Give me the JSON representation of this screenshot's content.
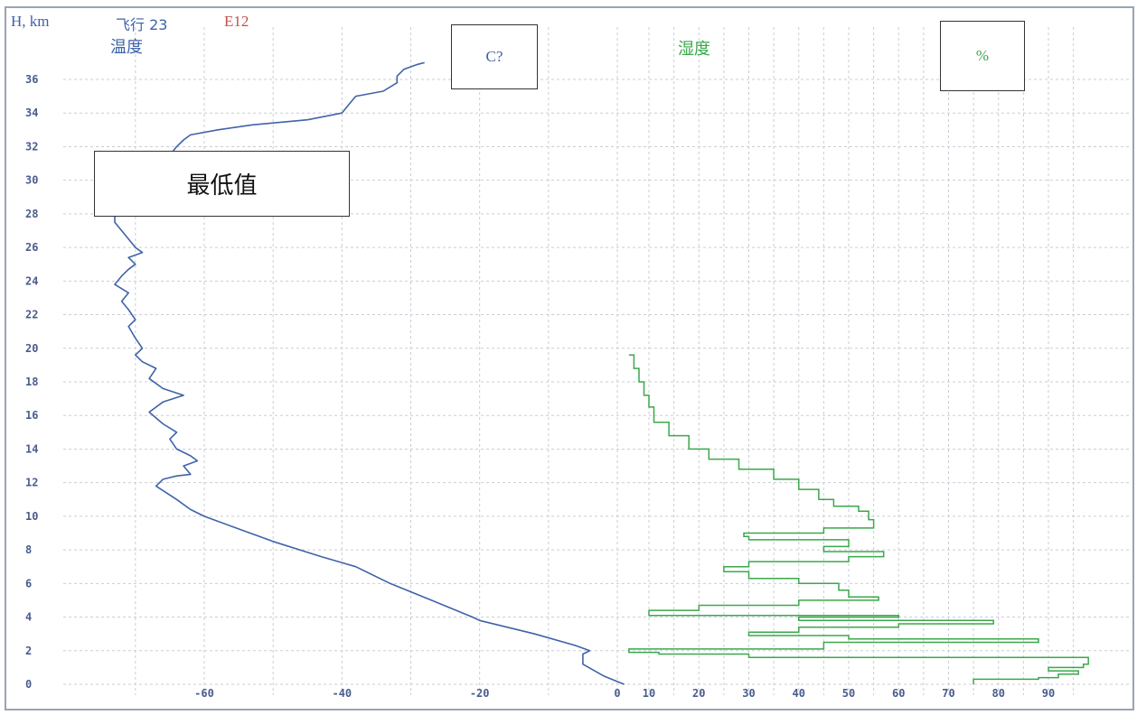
{
  "header": {
    "axis_label": "H, km",
    "flight": "飞行 23",
    "code": "E12",
    "temp_label": "温度",
    "temp_unit": "C?",
    "humidity_label": "湿度",
    "humidity_unit": "%",
    "annotation": "最低值"
  },
  "colors": {
    "temperature": "#3f63a8",
    "humidity": "#3aa84a",
    "code": "#c0504d",
    "tick": "#4a5c8e",
    "grid": "#c9cdd6"
  },
  "chart_data": [
    {
      "type": "line",
      "title": "",
      "xlabel": "温度",
      "ylabel": "H, km",
      "x_unit": "C?",
      "xlim": [
        -75,
        3
      ],
      "ylim": [
        -0.5,
        38
      ],
      "grid": true,
      "x_ticks": [
        -60,
        -40,
        -20,
        0
      ],
      "x_tick_labels": [
        "-60",
        "-40",
        "-20",
        "0"
      ],
      "y_ticks": [
        0,
        2,
        4,
        6,
        8,
        10,
        12,
        14,
        16,
        18,
        20,
        22,
        24,
        26,
        28,
        30,
        32,
        34,
        36
      ],
      "y_tick_labels": [
        "0",
        "2",
        "4",
        "6",
        "8",
        "10",
        "12",
        "14",
        "16",
        "18",
        "20",
        "22",
        "24",
        "26",
        "28",
        "30",
        "32",
        "34",
        "36"
      ],
      "series": [
        {
          "name": "温度",
          "points": [
            [
              1,
              0
            ],
            [
              -2,
              0.5
            ],
            [
              -5,
              1.2
            ],
            [
              -5,
              1.8
            ],
            [
              -4,
              2
            ],
            [
              -6,
              2.3
            ],
            [
              -12,
              3
            ],
            [
              -20,
              3.8
            ],
            [
              -21,
              4
            ],
            [
              -27,
              5
            ],
            [
              -33,
              6
            ],
            [
              -38,
              7
            ],
            [
              -43,
              7.6
            ],
            [
              -50,
              8.5
            ],
            [
              -56,
              9.4
            ],
            [
              -60,
              10
            ],
            [
              -62,
              10.4
            ],
            [
              -64,
              11
            ],
            [
              -67,
              11.8
            ],
            [
              -66,
              12.2
            ],
            [
              -64,
              12.4
            ],
            [
              -62,
              12.5
            ],
            [
              -63,
              13
            ],
            [
              -61,
              13.3
            ],
            [
              -62,
              13.6
            ],
            [
              -64,
              14
            ],
            [
              -65,
              14.6
            ],
            [
              -64,
              15
            ],
            [
              -66,
              15.5
            ],
            [
              -68,
              16.2
            ],
            [
              -66,
              16.8
            ],
            [
              -63,
              17.2
            ],
            [
              -66,
              17.6
            ],
            [
              -68,
              18.2
            ],
            [
              -67,
              18.8
            ],
            [
              -69,
              19.2
            ],
            [
              -70,
              19.6
            ],
            [
              -69,
              20
            ],
            [
              -70,
              20.6
            ],
            [
              -71,
              21.3
            ],
            [
              -70,
              21.7
            ],
            [
              -71,
              22.3
            ],
            [
              -72,
              22.8
            ],
            [
              -71,
              23.3
            ],
            [
              -73,
              23.8
            ],
            [
              -72,
              24.3
            ],
            [
              -71,
              24.7
            ],
            [
              -70,
              25
            ],
            [
              -71,
              25.4
            ],
            [
              -69,
              25.7
            ],
            [
              -70,
              26
            ],
            [
              -71,
              26.5
            ],
            [
              -72,
              27
            ],
            [
              -73,
              27.5
            ],
            [
              -73,
              28
            ],
            [
              -74,
              28.5
            ],
            [
              -75,
              29
            ],
            [
              -74,
              29.3
            ],
            [
              -70,
              29.6
            ],
            [
              -68,
              30
            ],
            [
              -67,
              30.5
            ],
            [
              -66,
              31
            ],
            [
              -65,
              31.5
            ],
            [
              -64,
              32
            ],
            [
              -63,
              32.4
            ],
            [
              -62,
              32.7
            ],
            [
              -58,
              33
            ],
            [
              -53,
              33.3
            ],
            [
              -45,
              33.6
            ],
            [
              -40,
              34
            ],
            [
              -39,
              34.5
            ],
            [
              -38,
              35
            ],
            [
              -34,
              35.3
            ],
            [
              -32,
              35.8
            ],
            [
              -32,
              36.2
            ],
            [
              -31,
              36.6
            ],
            [
              -29,
              36.9
            ],
            [
              -28,
              37
            ]
          ]
        }
      ]
    },
    {
      "type": "line",
      "title": "",
      "xlabel": "湿度",
      "ylabel": "H, km",
      "x_unit": "%",
      "xlim": [
        3,
        100
      ],
      "ylim": [
        -0.5,
        38
      ],
      "grid": true,
      "x_ticks": [
        10,
        20,
        30,
        40,
        50,
        60,
        70,
        80,
        90
      ],
      "x_tick_labels": [
        "10",
        "20",
        "30",
        "40",
        "50",
        "60",
        "70",
        "80",
        "90"
      ],
      "series": [
        {
          "name": "湿度",
          "points": [
            [
              75,
              0
            ],
            [
              88,
              0.3
            ],
            [
              92,
              0.4
            ],
            [
              96,
              0.6
            ],
            [
              90,
              0.8
            ],
            [
              97,
              1
            ],
            [
              98,
              1.2
            ],
            [
              30,
              1.6
            ],
            [
              12,
              1.8
            ],
            [
              6,
              1.9
            ],
            [
              45,
              2.1
            ],
            [
              88,
              2.5
            ],
            [
              50,
              2.7
            ],
            [
              30,
              2.9
            ],
            [
              40,
              3.1
            ],
            [
              60,
              3.4
            ],
            [
              79,
              3.6
            ],
            [
              40,
              3.8
            ],
            [
              60,
              4
            ],
            [
              10,
              4.1
            ],
            [
              20,
              4.4
            ],
            [
              40,
              4.7
            ],
            [
              56,
              5
            ],
            [
              50,
              5.2
            ],
            [
              48,
              5.6
            ],
            [
              40,
              6
            ],
            [
              30,
              6.3
            ],
            [
              25,
              6.7
            ],
            [
              30,
              7
            ],
            [
              50,
              7.3
            ],
            [
              57,
              7.6
            ],
            [
              45,
              7.9
            ],
            [
              50,
              8.2
            ],
            [
              30,
              8.6
            ],
            [
              29,
              8.8
            ],
            [
              45,
              9
            ],
            [
              55,
              9.3
            ],
            [
              54,
              9.8
            ],
            [
              52,
              10.3
            ],
            [
              47,
              10.6
            ],
            [
              44,
              11
            ],
            [
              40,
              11.6
            ],
            [
              35,
              12.2
            ],
            [
              28,
              12.8
            ],
            [
              22,
              13.4
            ],
            [
              18,
              14
            ],
            [
              14,
              14.8
            ],
            [
              11,
              15.6
            ],
            [
              10,
              16.5
            ],
            [
              9,
              17.2
            ],
            [
              8,
              18
            ],
            [
              7,
              18.8
            ],
            [
              6,
              19.6
            ]
          ]
        }
      ]
    }
  ]
}
